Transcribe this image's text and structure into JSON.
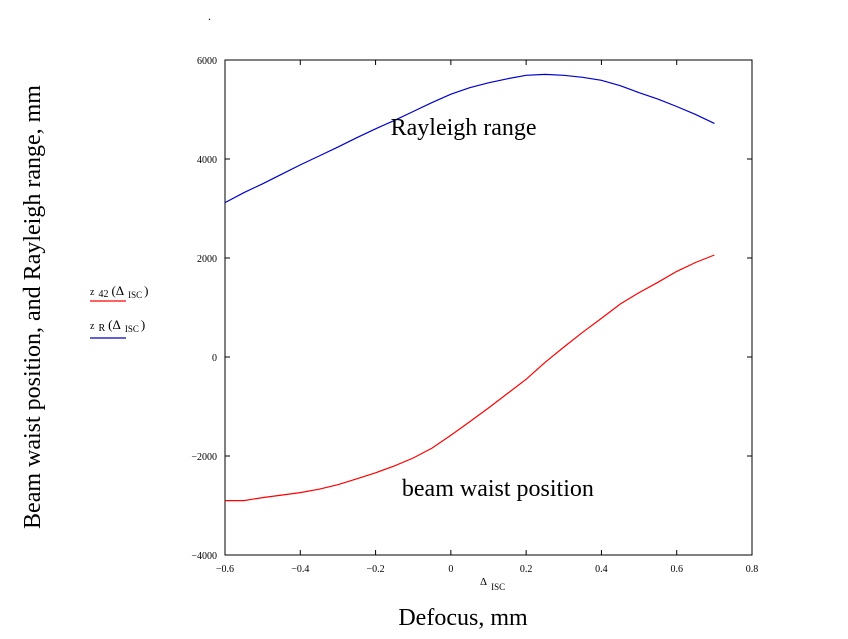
{
  "chart_data": {
    "type": "line",
    "title": "",
    "xlabel": "Defocus, mm",
    "ylabel": "Beam waist position, and Rayleigh range, mm",
    "x_axis_symbol": "Δ",
    "x_axis_symbol_sub": "ISC",
    "xlim": [
      -0.6,
      0.8
    ],
    "ylim": [
      -4000,
      6000
    ],
    "xticks": [
      -0.6,
      -0.4,
      -0.2,
      0,
      0.2,
      0.4,
      0.6,
      0.8
    ],
    "xtick_labels": [
      "−0.6",
      "−0.4",
      "−0.2",
      "0",
      "0.2",
      "0.4",
      "0.6",
      "0.8"
    ],
    "yticks": [
      -4000,
      -2000,
      0,
      2000,
      4000,
      6000
    ],
    "ytick_labels": [
      "−4000",
      "−2000",
      "0",
      "2000",
      "4000",
      "6000"
    ],
    "grid": false,
    "series": [
      {
        "name_main": "z",
        "name_sub": "42",
        "name_arg": "(Δ",
        "name_arg_sub": "ISC",
        "name_close": ")",
        "color": "#ff0000",
        "x": [
          -0.6,
          -0.55,
          -0.5,
          -0.45,
          -0.4,
          -0.35,
          -0.3,
          -0.25,
          -0.2,
          -0.15,
          -0.1,
          -0.05,
          0,
          0.05,
          0.1,
          0.15,
          0.2,
          0.25,
          0.3,
          0.35,
          0.4,
          0.45,
          0.5,
          0.55,
          0.6,
          0.65,
          0.7
        ],
        "y": [
          -2900,
          -2900,
          -2840,
          -2790,
          -2740,
          -2670,
          -2580,
          -2460,
          -2340,
          -2200,
          -2040,
          -1840,
          -1580,
          -1310,
          -1030,
          -740,
          -450,
          -110,
          200,
          500,
          780,
          1070,
          1300,
          1510,
          1730,
          1910,
          2060
        ]
      },
      {
        "name_main": "z",
        "name_sub": "R",
        "name_arg": "(Δ",
        "name_arg_sub": "ISC",
        "name_close": ")",
        "color": "#0000cc",
        "x": [
          -0.6,
          -0.55,
          -0.5,
          -0.45,
          -0.4,
          -0.35,
          -0.3,
          -0.25,
          -0.2,
          -0.15,
          -0.1,
          -0.05,
          0,
          0.05,
          0.1,
          0.15,
          0.2,
          0.25,
          0.3,
          0.35,
          0.4,
          0.45,
          0.5,
          0.55,
          0.6,
          0.65,
          0.7
        ],
        "y": [
          3120,
          3320,
          3500,
          3690,
          3880,
          4060,
          4240,
          4430,
          4610,
          4780,
          4960,
          5140,
          5310,
          5440,
          5540,
          5620,
          5690,
          5710,
          5690,
          5650,
          5590,
          5480,
          5340,
          5210,
          5060,
          4900,
          4720
        ]
      }
    ],
    "annotations": [
      {
        "text": "Rayleigh range",
        "x": -0.16,
        "y": 4480
      },
      {
        "text": "beam waist position",
        "x": -0.13,
        "y": -2810
      }
    ],
    "top_mark": "."
  }
}
